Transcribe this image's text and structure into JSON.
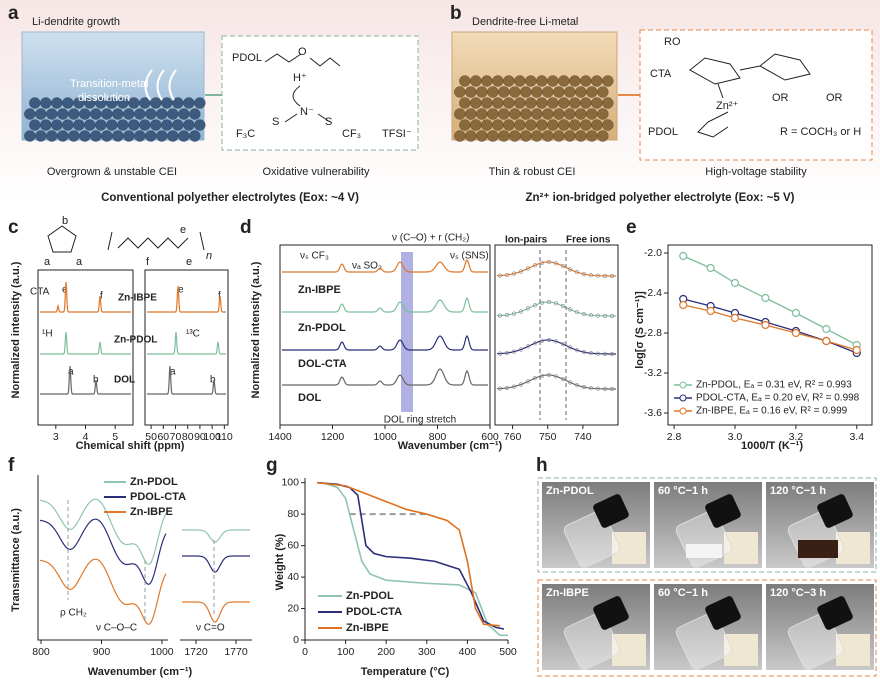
{
  "panels": {
    "a": {
      "letter": "a",
      "heading": "Li-dendrite growth",
      "inset_lines": [
        "Transition-metal",
        "dissolution"
      ],
      "chem": [
        "PDOL",
        "O",
        "H⁺",
        "N⁻",
        "S",
        "S",
        "F₃C",
        "CF₃",
        "TFSI⁻"
      ],
      "captions": [
        "Overgrown & unstable CEI",
        "Oxidative vulnerability"
      ],
      "title": "Conventional polyether electrolytes (Eox: ~4 V)"
    },
    "b": {
      "letter": "b",
      "heading": "Dendrite-free Li-metal",
      "chem": [
        "RO",
        "CTA",
        "Zn²⁺",
        "OR",
        "OR",
        "PDOL",
        "R = COCH₃ or H"
      ],
      "captions": [
        "Thin & robust CEI",
        "High-voltage stability"
      ],
      "title": "Zn²⁺ ion-bridged polyether electrolyte (Eox: ~5 V)"
    },
    "c": {
      "letter": "c",
      "structure_labels": [
        "b",
        "a",
        "a",
        "f",
        "e",
        "e",
        "n"
      ],
      "labels": [
        "CTA",
        "e",
        "f",
        "Zn-IBPE",
        "e",
        "f",
        "¹H",
        "Zn-PDOL",
        "¹³C",
        "a",
        "b",
        "DOL",
        "a",
        "b"
      ],
      "xticks_left": [
        3,
        4,
        5
      ],
      "xlim_left": [
        2.4,
        5.6
      ],
      "xticks_right": [
        50,
        60,
        70,
        80,
        90,
        100,
        110
      ],
      "xlim_right": [
        45,
        113
      ],
      "xlabel": "Chemical shift (ppm)",
      "ylabel": "Normalized intensity (a.u.)"
    },
    "d": {
      "letter": "d",
      "labels": [
        "ν (C–O) + r (CH₂)",
        "νₛ CF₃",
        "νₐ SO₂",
        "νₛ (SNS)",
        "Ion-pairs",
        "Free ions",
        "Zn-IBPE",
        "Zn-PDOL",
        "DOL-CTA",
        "DOL",
        "DOL ring stretch"
      ],
      "xticks_left": [
        1400,
        1200,
        1000,
        800,
        600
      ],
      "xlim_left": [
        1400,
        600
      ],
      "xticks_right": [
        760,
        750,
        740
      ],
      "xlim_right": [
        765,
        730
      ],
      "xlabel": "Wavenumber (cm⁻¹)",
      "ylabel": "Normalized intensity (a.u.)"
    },
    "e": {
      "letter": "e",
      "type": "scatter",
      "xlabel": "1000/T (K⁻¹)",
      "ylabel": "log[σ (S cm⁻¹)]",
      "xlim": [
        2.78,
        3.45
      ],
      "ylim": [
        -3.72,
        -1.92
      ],
      "xticks": [
        {
          "value": 2.8,
          "label": "2.8"
        },
        {
          "value": 3,
          "label": "3.0"
        },
        {
          "value": 3.2,
          "label": "3.2"
        },
        {
          "value": 3.4,
          "label": "3.4"
        }
      ],
      "yticks": [
        {
          "value": -2,
          "label": "-2.0"
        },
        -2.4,
        -2.8,
        -3.2,
        -3.6
      ],
      "x": [
        2.83,
        2.92,
        3.0,
        3.1,
        3.2,
        3.3,
        3.4
      ],
      "series": [
        {
          "name": "Zn-PDOL, Eₐ = 0.31 eV, R² = 0.993",
          "color": "#7dbf9c",
          "values": [
            -2.03,
            -2.15,
            -2.3,
            -2.45,
            -2.6,
            -2.76,
            -2.92
          ]
        },
        {
          "name": "PDOL-CTA, Eₐ = 0.20 eV, R² = 0.998",
          "color": "#2b2e78",
          "values": [
            -2.46,
            -2.53,
            -2.6,
            -2.69,
            -2.78,
            -2.88,
            -3.0
          ]
        },
        {
          "name": "Zn-IBPE, Eₐ = 0.16 eV, R² = 0.999",
          "color": "#e0772a",
          "values": [
            -2.52,
            -2.58,
            -2.65,
            -2.72,
            -2.8,
            -2.88,
            -2.97
          ]
        }
      ]
    },
    "f": {
      "letter": "f",
      "legend": [
        "Zn-PDOL",
        "PDOL-CTA",
        "Zn-IBPE"
      ],
      "colors": [
        "#8fc4b0",
        "#2b2e78",
        "#e0772a"
      ],
      "labels": [
        "ρ CH₂",
        "ν C–O–C",
        "ν C=O"
      ],
      "xticks_left": [
        800,
        900,
        1000
      ],
      "xlim_left": [
        795,
        1010
      ],
      "xticks_right": [
        1720,
        1770
      ],
      "xlim_right": [
        1700,
        1790
      ],
      "xlabel": "Wavenumber (cm⁻¹)",
      "ylabel": "Transmittance (a.u.)"
    },
    "g": {
      "letter": "g",
      "type": "line",
      "xlabel": "Temperature (°C)",
      "ylabel": "Weight (%)",
      "xlim": [
        0,
        500
      ],
      "ylim": [
        0,
        103
      ],
      "xticks": [
        0,
        100,
        200,
        300,
        400,
        500
      ],
      "yticks": [
        0,
        20,
        40,
        60,
        80,
        100
      ],
      "reference_line": 80,
      "series": [
        {
          "name": "Zn-PDOL",
          "color": "#8fc4b0",
          "x": [
            30,
            50,
            80,
            100,
            120,
            140,
            160,
            200,
            300,
            380,
            420,
            450,
            480,
            500
          ],
          "values": [
            100,
            99.5,
            97,
            90,
            70,
            50,
            42,
            38,
            36,
            35,
            30,
            10,
            3,
            3
          ]
        },
        {
          "name": "PDOL-CTA",
          "color": "#2b2e78",
          "x": [
            30,
            80,
            110,
            130,
            150,
            170,
            200,
            260,
            320,
            380,
            410,
            440,
            470,
            490
          ],
          "values": [
            100,
            99,
            97,
            92,
            60,
            55,
            53,
            52,
            50,
            45,
            30,
            12,
            8,
            7
          ]
        },
        {
          "name": "Zn-IBPE",
          "color": "#e0701e",
          "x": [
            30,
            100,
            150,
            200,
            250,
            300,
            350,
            380,
            400,
            420,
            440,
            480
          ],
          "values": [
            100,
            98,
            93,
            88,
            83,
            80,
            76,
            70,
            50,
            20,
            10,
            9
          ]
        }
      ]
    },
    "h": {
      "letter": "h",
      "photo_labels": [
        "Zn-PDOL",
        "60 °C−1 h",
        "120 °C−1 h",
        "Zn-IBPE",
        "60 °C−1 h",
        "120 °C−3 h"
      ]
    }
  }
}
